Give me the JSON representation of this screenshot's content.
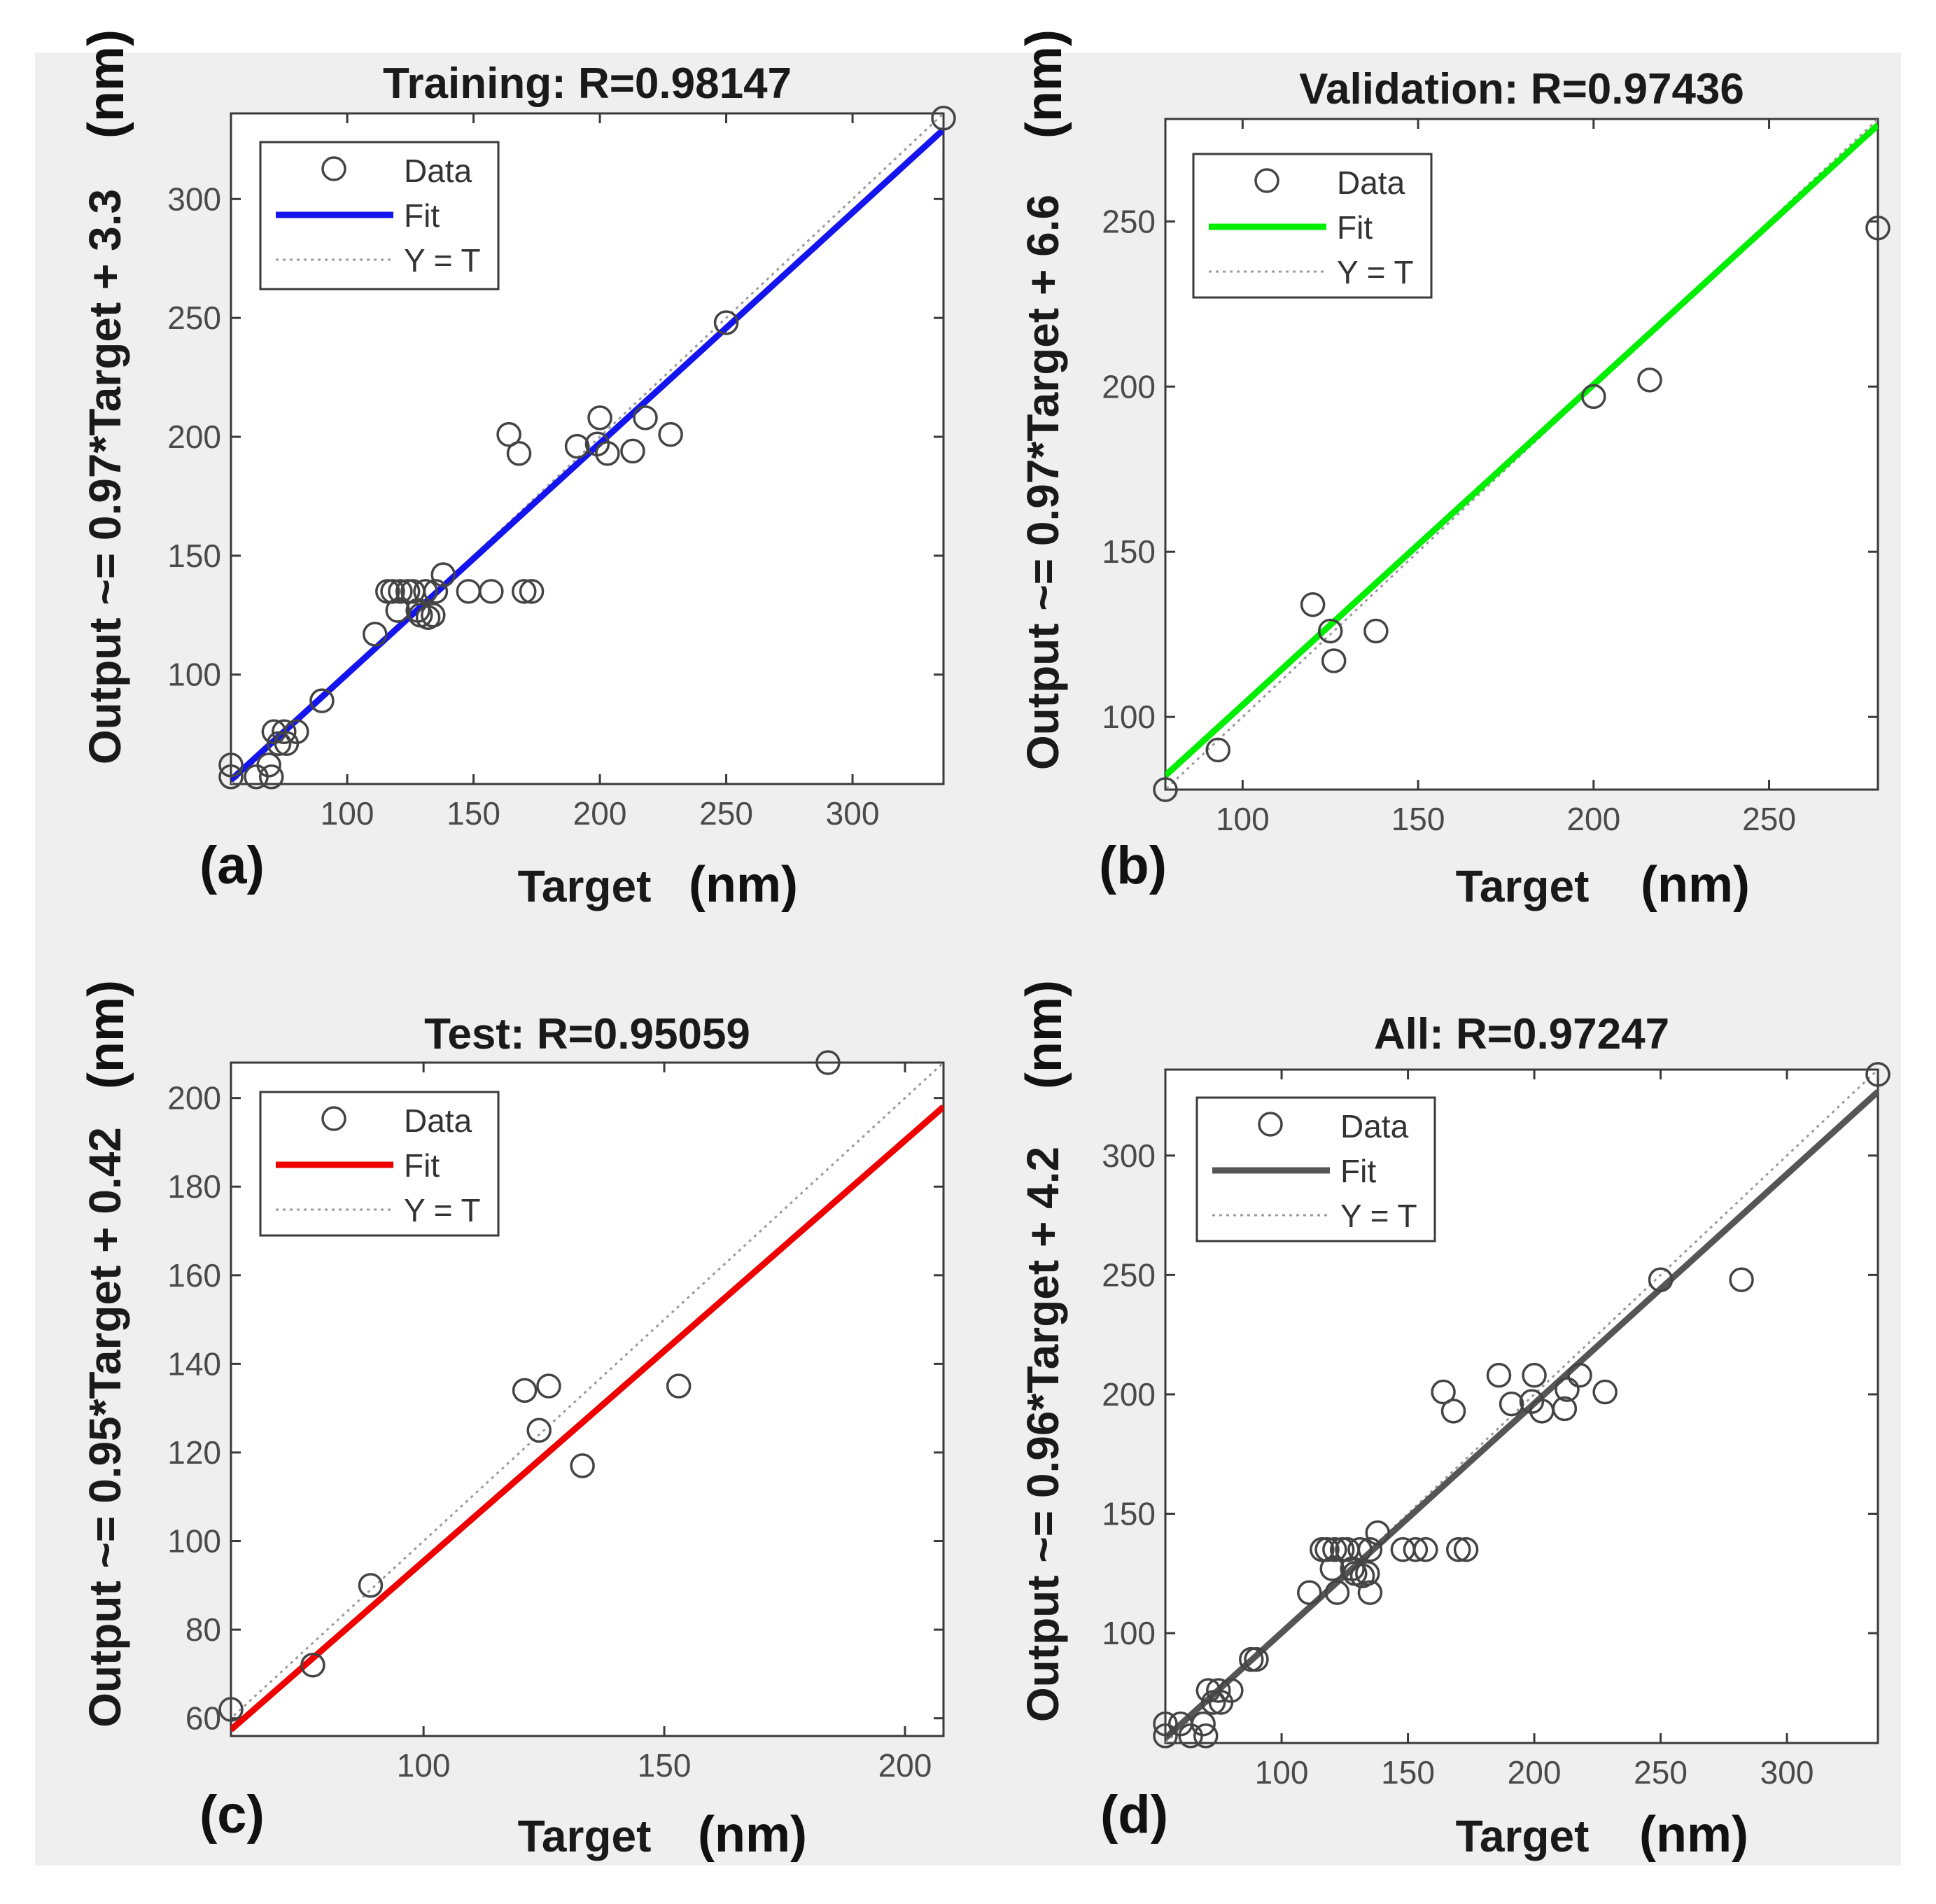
{
  "figure": {
    "background": "#efefef",
    "axes_background": "#ffffff"
  },
  "chart_data": [
    {
      "id": "a",
      "type": "scatter",
      "panel_label": "(a)",
      "title": "Training: R=0.98147",
      "xlabel": "Target",
      "xunit": "(nm)",
      "ylabel": "Output ~= 0.97*Target + 3.3",
      "yunit": "(nm)",
      "xlim": [
        54,
        336
      ],
      "ylim": [
        54,
        336
      ],
      "xticks": [
        100,
        150,
        200,
        250,
        300
      ],
      "yticks": [
        100,
        150,
        200,
        250,
        300
      ],
      "fit": {
        "slope": 0.97,
        "intercept": 3.3,
        "color": "#1414ee"
      },
      "legend": {
        "data": "Data",
        "fit": "Fit",
        "ref": "Y = T"
      },
      "points": [
        [
          54,
          57
        ],
        [
          54,
          62
        ],
        [
          64,
          57
        ],
        [
          70,
          57
        ],
        [
          69,
          62
        ],
        [
          73,
          71
        ],
        [
          76,
          71
        ],
        [
          75,
          76
        ],
        [
          80,
          76
        ],
        [
          71,
          76
        ],
        [
          90,
          89
        ],
        [
          111,
          117
        ],
        [
          116,
          135
        ],
        [
          118,
          135
        ],
        [
          120,
          127
        ],
        [
          121,
          135
        ],
        [
          124,
          135
        ],
        [
          126,
          135
        ],
        [
          128,
          127
        ],
        [
          129,
          125
        ],
        [
          131,
          135
        ],
        [
          132,
          124
        ],
        [
          134,
          125
        ],
        [
          135,
          135
        ],
        [
          138,
          142
        ],
        [
          148,
          135
        ],
        [
          157,
          135
        ],
        [
          170,
          135
        ],
        [
          173,
          135
        ],
        [
          164,
          201
        ],
        [
          168,
          193
        ],
        [
          191,
          196
        ],
        [
          200,
          208
        ],
        [
          199,
          197
        ],
        [
          203,
          193
        ],
        [
          213,
          194
        ],
        [
          218,
          208
        ],
        [
          228,
          201
        ],
        [
          250,
          248
        ],
        [
          336,
          334
        ]
      ]
    },
    {
      "id": "b",
      "type": "scatter",
      "panel_label": "(b)",
      "title": "Validation: R=0.97436",
      "xlabel": "Target",
      "xunit": "(nm)",
      "ylabel": "Output ~= 0.97*Target + 6.6",
      "yunit": "(nm)",
      "xlim": [
        78,
        281
      ],
      "ylim": [
        78,
        281
      ],
      "xticks": [
        100,
        150,
        200,
        250
      ],
      "yticks": [
        100,
        150,
        200,
        250
      ],
      "fit": {
        "slope": 0.97,
        "intercept": 6.6,
        "color": "#00ee00"
      },
      "legend": {
        "data": "Data",
        "fit": "Fit",
        "ref": "Y = T"
      },
      "points": [
        [
          78,
          78
        ],
        [
          93,
          90
        ],
        [
          120,
          134
        ],
        [
          125,
          126
        ],
        [
          126,
          117
        ],
        [
          138,
          126
        ],
        [
          200,
          197
        ],
        [
          216,
          202
        ],
        [
          281,
          248
        ]
      ]
    },
    {
      "id": "c",
      "type": "scatter",
      "panel_label": "(c)",
      "title": "Test: R=0.95059",
      "xlabel": "Target",
      "xunit": "(nm)",
      "ylabel": "Output ~= 0.95*Target + 0.42",
      "yunit": "(nm)",
      "xlim": [
        60,
        208
      ],
      "ylim": [
        56,
        208
      ],
      "xticks": [
        100,
        150,
        200
      ],
      "yticks": [
        60,
        80,
        100,
        120,
        140,
        160,
        180,
        200
      ],
      "fit": {
        "slope": 0.95,
        "intercept": 0.42,
        "color": "#ee0000"
      },
      "legend": {
        "data": "Data",
        "fit": "Fit",
        "ref": "Y = T"
      },
      "points": [
        [
          60,
          62
        ],
        [
          77,
          72
        ],
        [
          89,
          90
        ],
        [
          121,
          134
        ],
        [
          124,
          125
        ],
        [
          126,
          135
        ],
        [
          133,
          117
        ],
        [
          153,
          135
        ],
        [
          184,
          208
        ]
      ]
    },
    {
      "id": "d",
      "type": "scatter",
      "panel_label": "(d)",
      "title": "All: R=0.97247",
      "xlabel": "Target",
      "xunit": "(nm)",
      "ylabel": "Output ~= 0.96*Target + 4.2",
      "yunit": "(nm)",
      "xlim": [
        54,
        336
      ],
      "ylim": [
        54,
        336
      ],
      "xticks": [
        100,
        150,
        200,
        250,
        300
      ],
      "yticks": [
        100,
        150,
        200,
        250,
        300
      ],
      "fit": {
        "slope": 0.96,
        "intercept": 4.2,
        "color": "#555555"
      },
      "legend": {
        "data": "Data",
        "fit": "Fit",
        "ref": "Y = T"
      },
      "points": [
        [
          54,
          57
        ],
        [
          54,
          62
        ],
        [
          60,
          62
        ],
        [
          64,
          57
        ],
        [
          70,
          57
        ],
        [
          69,
          62
        ],
        [
          73,
          71
        ],
        [
          76,
          71
        ],
        [
          75,
          76
        ],
        [
          80,
          76
        ],
        [
          71,
          76
        ],
        [
          88,
          89
        ],
        [
          90,
          89
        ],
        [
          111,
          117
        ],
        [
          116,
          135
        ],
        [
          118,
          135
        ],
        [
          120,
          127
        ],
        [
          122,
          117
        ],
        [
          121,
          135
        ],
        [
          124,
          135
        ],
        [
          126,
          135
        ],
        [
          128,
          127
        ],
        [
          129,
          125
        ],
        [
          131,
          135
        ],
        [
          132,
          124
        ],
        [
          134,
          125
        ],
        [
          135,
          117
        ],
        [
          135,
          135
        ],
        [
          138,
          142
        ],
        [
          148,
          135
        ],
        [
          153,
          135
        ],
        [
          157,
          135
        ],
        [
          170,
          135
        ],
        [
          173,
          135
        ],
        [
          164,
          201
        ],
        [
          168,
          193
        ],
        [
          186,
          208
        ],
        [
          191,
          196
        ],
        [
          200,
          208
        ],
        [
          199,
          197
        ],
        [
          203,
          193
        ],
        [
          212,
          194
        ],
        [
          213,
          202
        ],
        [
          218,
          208
        ],
        [
          228,
          201
        ],
        [
          250,
          248
        ],
        [
          282,
          248
        ],
        [
          336,
          334
        ]
      ]
    }
  ]
}
